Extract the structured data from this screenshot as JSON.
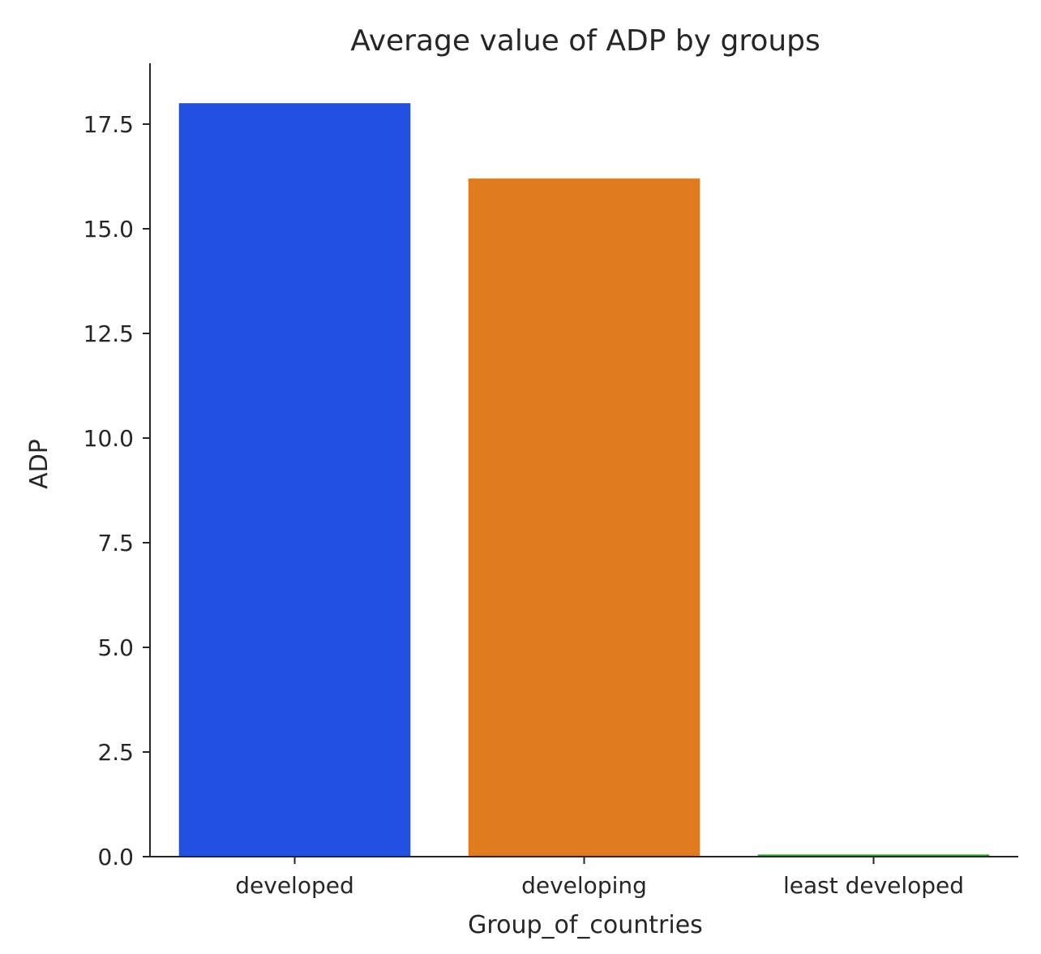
{
  "chart_data": {
    "type": "bar",
    "title": "Average value of ADP by groups",
    "xlabel": "Group_of_countries",
    "ylabel": "ADP",
    "categories": [
      "developed",
      "developing",
      "least developed"
    ],
    "values": [
      18.0,
      16.2,
      0.05
    ],
    "colors": [
      "#2250e0",
      "#e07b20",
      "#2ca02c"
    ],
    "ylim": [
      0,
      19
    ],
    "yticks": [
      0.0,
      2.5,
      5.0,
      7.5,
      10.0,
      12.5,
      15.0,
      17.5
    ],
    "ytick_labels": [
      "0.0",
      "2.5",
      "5.0",
      "7.5",
      "10.0",
      "12.5",
      "15.0",
      "17.5"
    ],
    "grid": false,
    "legend": "none"
  }
}
